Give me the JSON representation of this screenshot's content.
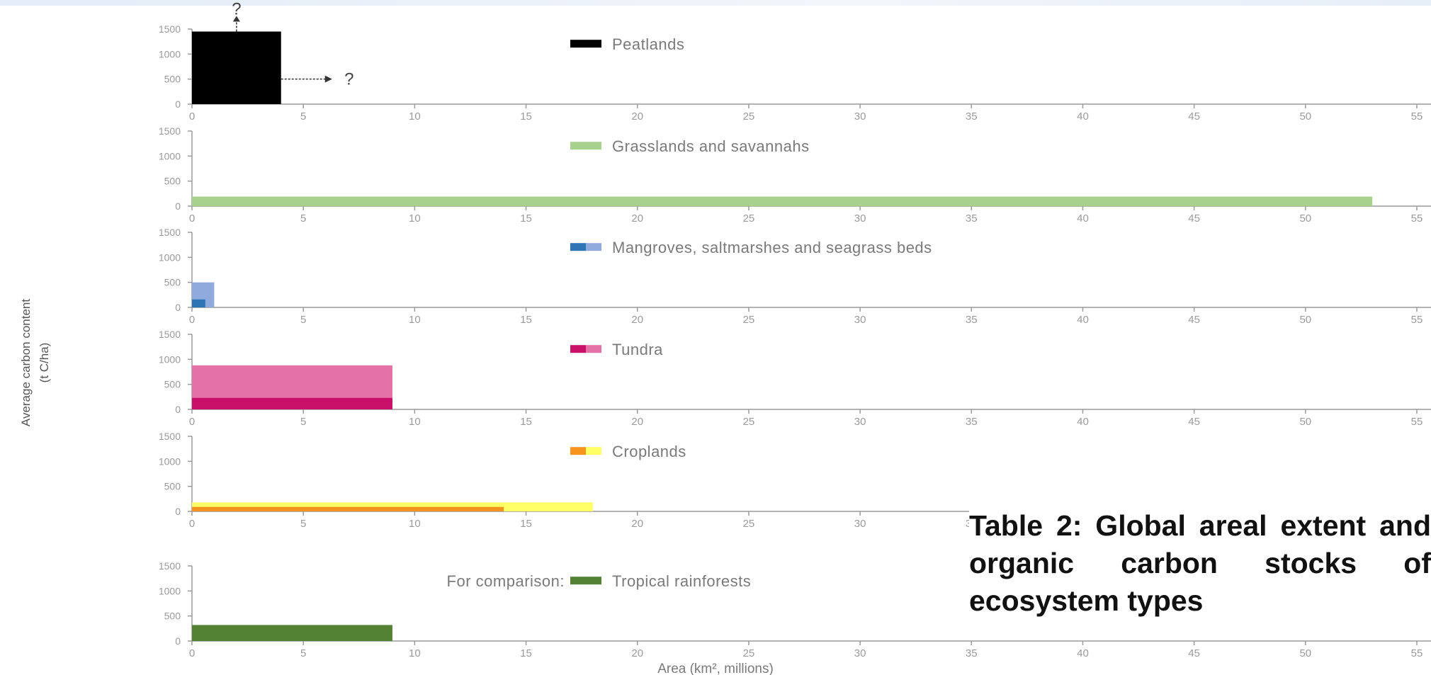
{
  "caption": "Table 2: Global areal extent and organic carbon stocks of ecosystem types",
  "chart_data": {
    "type": "bar",
    "xlabel": "Area (km², millions)",
    "ylabel_line1": "Average carbon content",
    "ylabel_line2": "(t C/ha)",
    "xlim": [
      0,
      55
    ],
    "ylim": [
      0,
      1500
    ],
    "x_ticks": [
      0,
      5,
      10,
      15,
      20,
      25,
      30,
      35,
      40,
      45,
      50,
      55
    ],
    "y_ticks": [
      0,
      500,
      1000,
      1500
    ],
    "comparison_label": "For comparison:",
    "unknown_marker": "?",
    "panels": [
      {
        "name": "Peatlands",
        "legend_colors": [
          "#000000"
        ],
        "bars": [
          {
            "x0": 0,
            "x1": 4,
            "y": 1450,
            "color": "#000000"
          }
        ],
        "annotations": true
      },
      {
        "name": "Grasslands and savannahs",
        "legend_colors": [
          "#a9d18e"
        ],
        "bars": [
          {
            "x0": 0,
            "x1": 53,
            "y": 190,
            "color": "#a9d18e"
          }
        ]
      },
      {
        "name": "Mangroves, saltmarshes and seagrass beds",
        "legend_colors": [
          "#2e75b6",
          "#8faadc"
        ],
        "bars": [
          {
            "x0": 0,
            "x1": 1,
            "y": 500,
            "color": "#8faadc"
          },
          {
            "x0": 0,
            "x1": 0.6,
            "y": 160,
            "color": "#2e75b6"
          }
        ]
      },
      {
        "name": "Tundra",
        "legend_colors": [
          "#c9116a",
          "#e472a6"
        ],
        "bars": [
          {
            "x0": 0,
            "x1": 9,
            "y": 880,
            "color": "#e472a6"
          },
          {
            "x0": 0,
            "x1": 9,
            "y": 230,
            "color": "#c9116a"
          }
        ]
      },
      {
        "name": "Croplands",
        "legend_colors": [
          "#f7941d",
          "#ffff66"
        ],
        "bars": [
          {
            "x0": 0,
            "x1": 18,
            "y": 180,
            "color": "#ffff66"
          },
          {
            "x0": 0,
            "x1": 14,
            "y": 90,
            "color": "#f7941d"
          }
        ]
      },
      {
        "name": "Tropical rainforests",
        "legend_colors": [
          "#548235"
        ],
        "bars": [
          {
            "x0": 0,
            "x1": 9,
            "y": 320,
            "color": "#548235"
          }
        ],
        "comparison": true
      }
    ]
  }
}
